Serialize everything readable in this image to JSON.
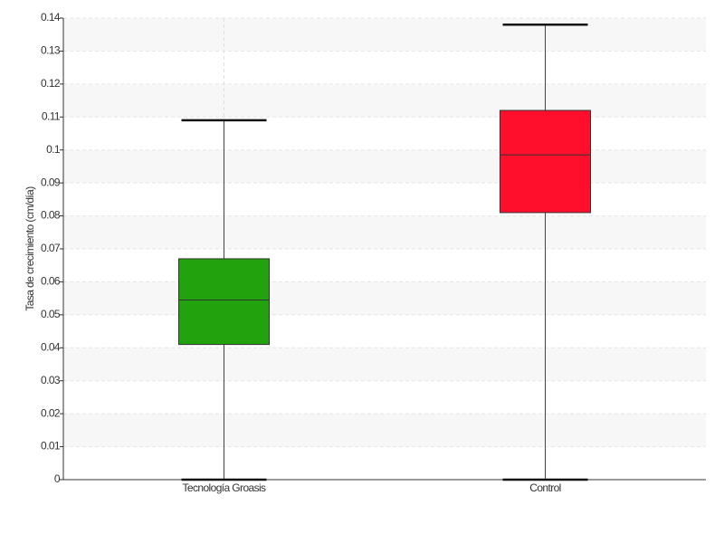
{
  "chart_data": {
    "type": "box",
    "y_label": "Tasa de crecimiento (cm/día)",
    "categories": [
      "Tecnología Groasis",
      "Control"
    ],
    "min": [
      0,
      0
    ],
    "q1": [
      0.041,
      0.081
    ],
    "median": [
      0.0545,
      0.0985
    ],
    "q3": [
      0.067,
      0.112
    ],
    "max": [
      0.109,
      0.138
    ],
    "colors": [
      "#22a20c",
      "#ff0f2c"
    ],
    "ylim": [
      0,
      0.14
    ],
    "yticks": [
      0,
      0.01,
      0.02,
      0.03,
      0.04,
      0.05,
      0.06,
      0.07,
      0.08,
      0.09,
      0.1,
      0.11,
      0.12,
      0.13,
      0.14
    ],
    "grid": true
  }
}
